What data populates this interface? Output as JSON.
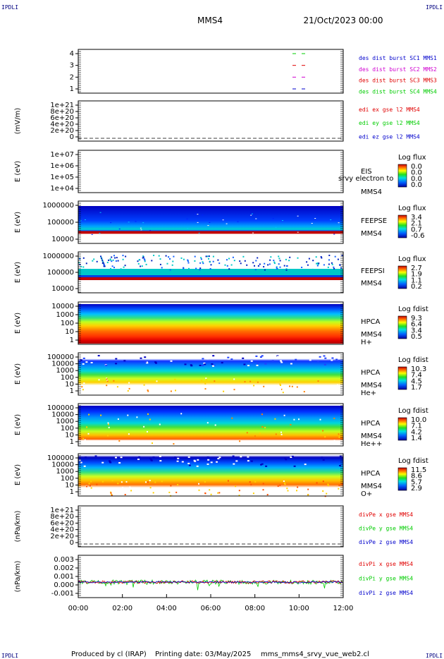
{
  "corner_mark": "IPDLI",
  "header": {
    "spacecraft": "MMS4",
    "date": "21/Oct/2023 00:00"
  },
  "footer": {
    "producer": "Produced by cl (IRAP)",
    "printing": "Printing date: 03/May/2025",
    "file": "mms_mms4_srvy_vue_web2.cl"
  },
  "colors": {
    "red": "#e00000",
    "green": "#00cc00",
    "blue": "#0000cc",
    "magenta": "#d000d0",
    "dark_blue": "#000080",
    "label": "#000000"
  },
  "time_ticks": [
    "00:00",
    "02:00",
    "04:00",
    "06:00",
    "08:00",
    "10:00",
    "12:00"
  ],
  "chart_data": [
    {
      "id": "burst",
      "type": "line",
      "ylabel": "",
      "yticks": [
        "4",
        "3",
        "2",
        "1"
      ],
      "legend": [
        {
          "text": "des dist burst SC1 MMS1",
          "color": "#0000cc"
        },
        {
          "text": "des dist burst SC2 MMS2",
          "color": "#d000d0"
        },
        {
          "text": "des dist burst SC3 MMS3",
          "color": "#e00000"
        },
        {
          "text": "des dist burst SC4 MMS4",
          "color": "#00cc00"
        }
      ]
    },
    {
      "id": "edi",
      "type": "line",
      "ylabel": "(mV/m)",
      "yticks": [
        "1e+21",
        "8e+20",
        "6e+20",
        "4e+20",
        "2e+20",
        "0"
      ],
      "legend": [
        {
          "text": "edi ex gse l2 MMS4",
          "color": "#e00000"
        },
        {
          "text": "edi ey gse l2 MMS4",
          "color": "#00cc00"
        },
        {
          "text": "edi ez gse l2 MMS4",
          "color": "#0000cc"
        }
      ]
    },
    {
      "id": "eis",
      "type": "heatmap",
      "ylabel": "E (eV)",
      "yticks": [
        "1e+07",
        "1e+06",
        "1e+05",
        "1e+04"
      ],
      "labels": [
        "EIS",
        "MMS4"
      ],
      "overlay": "srvy electron to",
      "cbar": {
        "title": "Log flux",
        "ticks": [
          "0.0",
          "0.0",
          "0.0",
          "0.0"
        ]
      }
    },
    {
      "id": "feepse",
      "type": "heatmap",
      "ylabel": "E (eV)",
      "yticks": [
        "1000000",
        "100000",
        "10000"
      ],
      "labels": [
        "FEEPSE",
        "MMS4"
      ],
      "cbar": {
        "title": "Log flux",
        "ticks": [
          "3.4",
          "2.1",
          "0.7",
          "-0.6"
        ]
      }
    },
    {
      "id": "feepsi",
      "type": "heatmap",
      "ylabel": "E (eV)",
      "yticks": [
        "1000000",
        "100000",
        "10000"
      ],
      "labels": [
        "FEEPSI",
        "MMS4"
      ],
      "cbar": {
        "title": "Log flux",
        "ticks": [
          "2.7",
          "1.9",
          "1.1",
          "0.2"
        ]
      }
    },
    {
      "id": "hpca_h",
      "type": "heatmap",
      "ylabel": "E (eV)",
      "yticks": [
        "10000",
        "1000",
        "100",
        "10",
        "1"
      ],
      "labels": [
        "HPCA",
        "MMS4",
        "H+"
      ],
      "cbar": {
        "title": "Log fdist",
        "ticks": [
          "9.3",
          "6.4",
          "3.4",
          "0.5"
        ]
      }
    },
    {
      "id": "hpca_he",
      "type": "heatmap",
      "ylabel": "E (eV)",
      "yticks": [
        "100000",
        "10000",
        "1000",
        "100",
        "10",
        "1"
      ],
      "labels": [
        "HPCA",
        "MMS4",
        "He+"
      ],
      "cbar": {
        "title": "Log fdist",
        "ticks": [
          "10.3",
          "7.4",
          "4.5",
          "1.7"
        ]
      }
    },
    {
      "id": "hpca_hepp",
      "type": "heatmap",
      "ylabel": "E (eV)",
      "yticks": [
        "100000",
        "10000",
        "1000",
        "100",
        "10",
        "1"
      ],
      "labels": [
        "HPCA",
        "MMS4",
        "He++"
      ],
      "cbar": {
        "title": "Log fdist",
        "ticks": [
          "10.0",
          "7.1",
          "4.2",
          "1.4"
        ]
      }
    },
    {
      "id": "hpca_o",
      "type": "heatmap",
      "ylabel": "E (eV)",
      "yticks": [
        "100000",
        "10000",
        "1000",
        "100",
        "10",
        "1"
      ],
      "labels": [
        "HPCA",
        "MMS4",
        "O+"
      ],
      "cbar": {
        "title": "Log fdist",
        "ticks": [
          "11.5",
          "8.6",
          "5.7",
          "2.9"
        ]
      }
    },
    {
      "id": "divpe",
      "type": "line",
      "ylabel": "(nPa/km)",
      "yticks": [
        "1e+21",
        "8e+20",
        "6e+20",
        "4e+20",
        "2e+20",
        "0"
      ],
      "legend": [
        {
          "text": "divPe x gse MMS4",
          "color": "#e00000"
        },
        {
          "text": "divPe y gse MMS4",
          "color": "#00cc00"
        },
        {
          "text": "divPe z gse MMS4",
          "color": "#0000cc"
        }
      ]
    },
    {
      "id": "divpi",
      "type": "line",
      "ylabel": "(nPa/km)",
      "yticks": [
        "0.003",
        "0.002",
        "0.001",
        "0.000",
        "-0.001"
      ],
      "legend": [
        {
          "text": "divPi x gse MMS4",
          "color": "#e00000"
        },
        {
          "text": "divPi y gse MMS4",
          "color": "#00cc00"
        },
        {
          "text": "divPi z gse MMS4",
          "color": "#0000cc"
        }
      ]
    }
  ]
}
